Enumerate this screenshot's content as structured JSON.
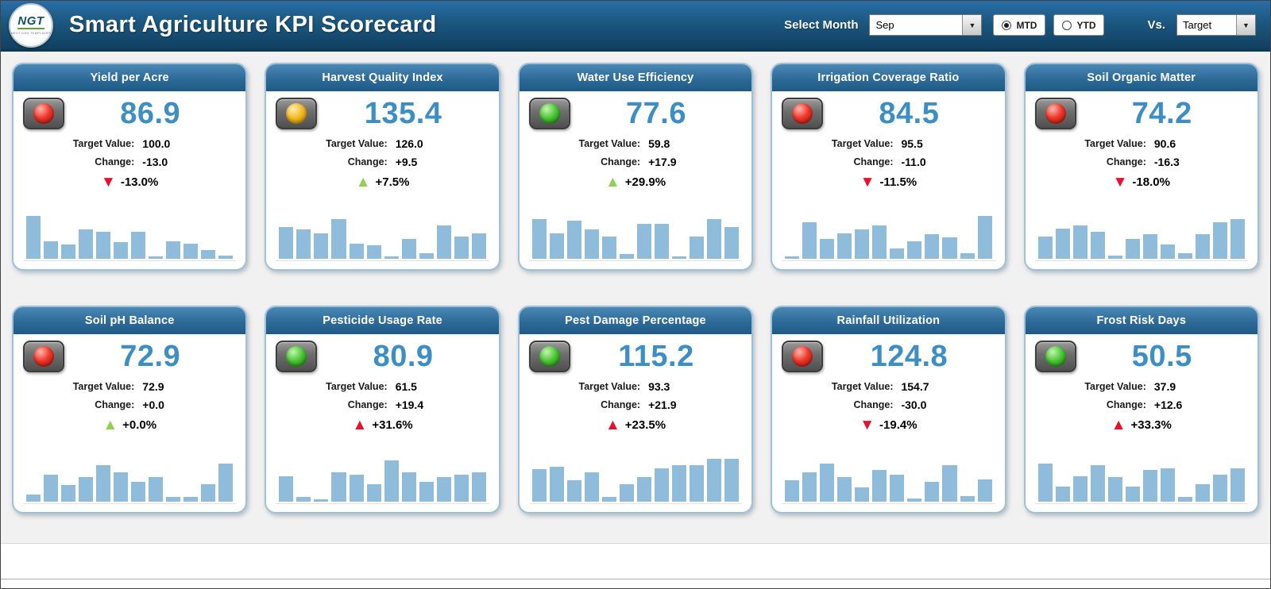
{
  "header": {
    "logo_text": "NGT",
    "logo_subtext": "NEXT GEN TEMPLATES",
    "title": "Smart Agriculture KPI Scorecard",
    "select_month_label": "Select Month",
    "selected_month": "Sep",
    "period_options": [
      {
        "label": "MTD",
        "selected": true
      },
      {
        "label": "YTD",
        "selected": false
      }
    ],
    "vs_label": "Vs.",
    "vs_value": "Target",
    "dropdown_arrow": "▼"
  },
  "labels": {
    "target_value": "Target Value:",
    "change": "Change:"
  },
  "colors": {
    "header_bg": "#1b577f",
    "card_header": "#2d6a98",
    "kpi_value": "#3d8ec4",
    "spark_bar": "#8fbcdb",
    "positive_arrow": "#92d050",
    "negative_arrow": "#e8112d",
    "light_red": "#ef3a2c",
    "light_yellow": "#f3b71b",
    "light_green": "#46c231"
  },
  "cards": [
    {
      "title": "Yield per Acre",
      "light": "red",
      "value": "86.9",
      "target": "100.0",
      "change": "-13.0",
      "pct": "-13.0%",
      "arrow_dir": "down",
      "arrow_color": "red",
      "spark": [
        0.92,
        0.38,
        0.3,
        0.62,
        0.58,
        0.35,
        0.58,
        0.05,
        0.38,
        0.33,
        0.18,
        0.06
      ]
    },
    {
      "title": "Harvest Quality Index",
      "light": "yellow",
      "value": "135.4",
      "target": "126.0",
      "change": "+9.5",
      "pct": "+7.5%",
      "arrow_dir": "up",
      "arrow_color": "green",
      "spark": [
        0.68,
        0.62,
        0.55,
        0.85,
        0.32,
        0.28,
        0.05,
        0.42,
        0.12,
        0.72,
        0.48,
        0.55
      ]
    },
    {
      "title": "Water Use Efficiency",
      "light": "green",
      "value": "77.6",
      "target": "59.8",
      "change": "+17.9",
      "pct": "+29.9%",
      "arrow_dir": "up",
      "arrow_color": "green",
      "spark": [
        0.85,
        0.55,
        0.82,
        0.62,
        0.48,
        0.1,
        0.75,
        0.75,
        0.05,
        0.48,
        0.85,
        0.68
      ]
    },
    {
      "title": "Irrigation Coverage Ratio",
      "light": "red",
      "value": "84.5",
      "target": "95.5",
      "change": "-11.0",
      "pct": "-11.5%",
      "arrow_dir": "down",
      "arrow_color": "red",
      "spark": [
        0.05,
        0.78,
        0.42,
        0.55,
        0.62,
        0.72,
        0.22,
        0.38,
        0.52,
        0.45,
        0.12,
        0.92
      ]
    },
    {
      "title": "Soil Organic Matter",
      "light": "red",
      "value": "74.2",
      "target": "90.6",
      "change": "-16.3",
      "pct": "-18.0%",
      "arrow_dir": "down",
      "arrow_color": "red",
      "spark": [
        0.48,
        0.65,
        0.72,
        0.58,
        0.06,
        0.42,
        0.52,
        0.3,
        0.12,
        0.52,
        0.78,
        0.85
      ]
    },
    {
      "title": "Soil pH Balance",
      "light": "red",
      "value": "72.9",
      "target": "72.9",
      "change": "+0.0",
      "pct": "+0.0%",
      "arrow_dir": "up",
      "arrow_color": "green",
      "spark": [
        0.15,
        0.58,
        0.35,
        0.52,
        0.78,
        0.62,
        0.42,
        0.52,
        0.1,
        0.1,
        0.38,
        0.82
      ]
    },
    {
      "title": "Pesticide Usage Rate",
      "light": "green",
      "value": "80.9",
      "target": "61.5",
      "change": "+19.4",
      "pct": "+31.6%",
      "arrow_dir": "up",
      "arrow_color": "red",
      "spark": [
        0.55,
        0.1,
        0.05,
        0.62,
        0.58,
        0.38,
        0.88,
        0.62,
        0.42,
        0.52,
        0.58,
        0.62
      ]
    },
    {
      "title": "Pest Damage Percentage",
      "light": "green",
      "value": "115.2",
      "target": "93.3",
      "change": "+21.9",
      "pct": "+23.5%",
      "arrow_dir": "up",
      "arrow_color": "red",
      "spark": [
        0.7,
        0.75,
        0.45,
        0.62,
        0.1,
        0.38,
        0.52,
        0.72,
        0.78,
        0.78,
        0.92,
        0.92
      ]
    },
    {
      "title": "Rainfall Utilization",
      "light": "red",
      "value": "124.8",
      "target": "154.7",
      "change": "-30.0",
      "pct": "-19.4%",
      "arrow_dir": "down",
      "arrow_color": "red",
      "spark": [
        0.45,
        0.62,
        0.82,
        0.52,
        0.3,
        0.68,
        0.58,
        0.06,
        0.42,
        0.78,
        0.12,
        0.48
      ]
    },
    {
      "title": "Frost Risk Days",
      "light": "green",
      "value": "50.5",
      "target": "37.9",
      "change": "+12.6",
      "pct": "+33.3%",
      "arrow_dir": "up",
      "arrow_color": "red",
      "spark": [
        0.82,
        0.32,
        0.55,
        0.78,
        0.52,
        0.32,
        0.68,
        0.72,
        0.1,
        0.38,
        0.58,
        0.72
      ]
    }
  ]
}
